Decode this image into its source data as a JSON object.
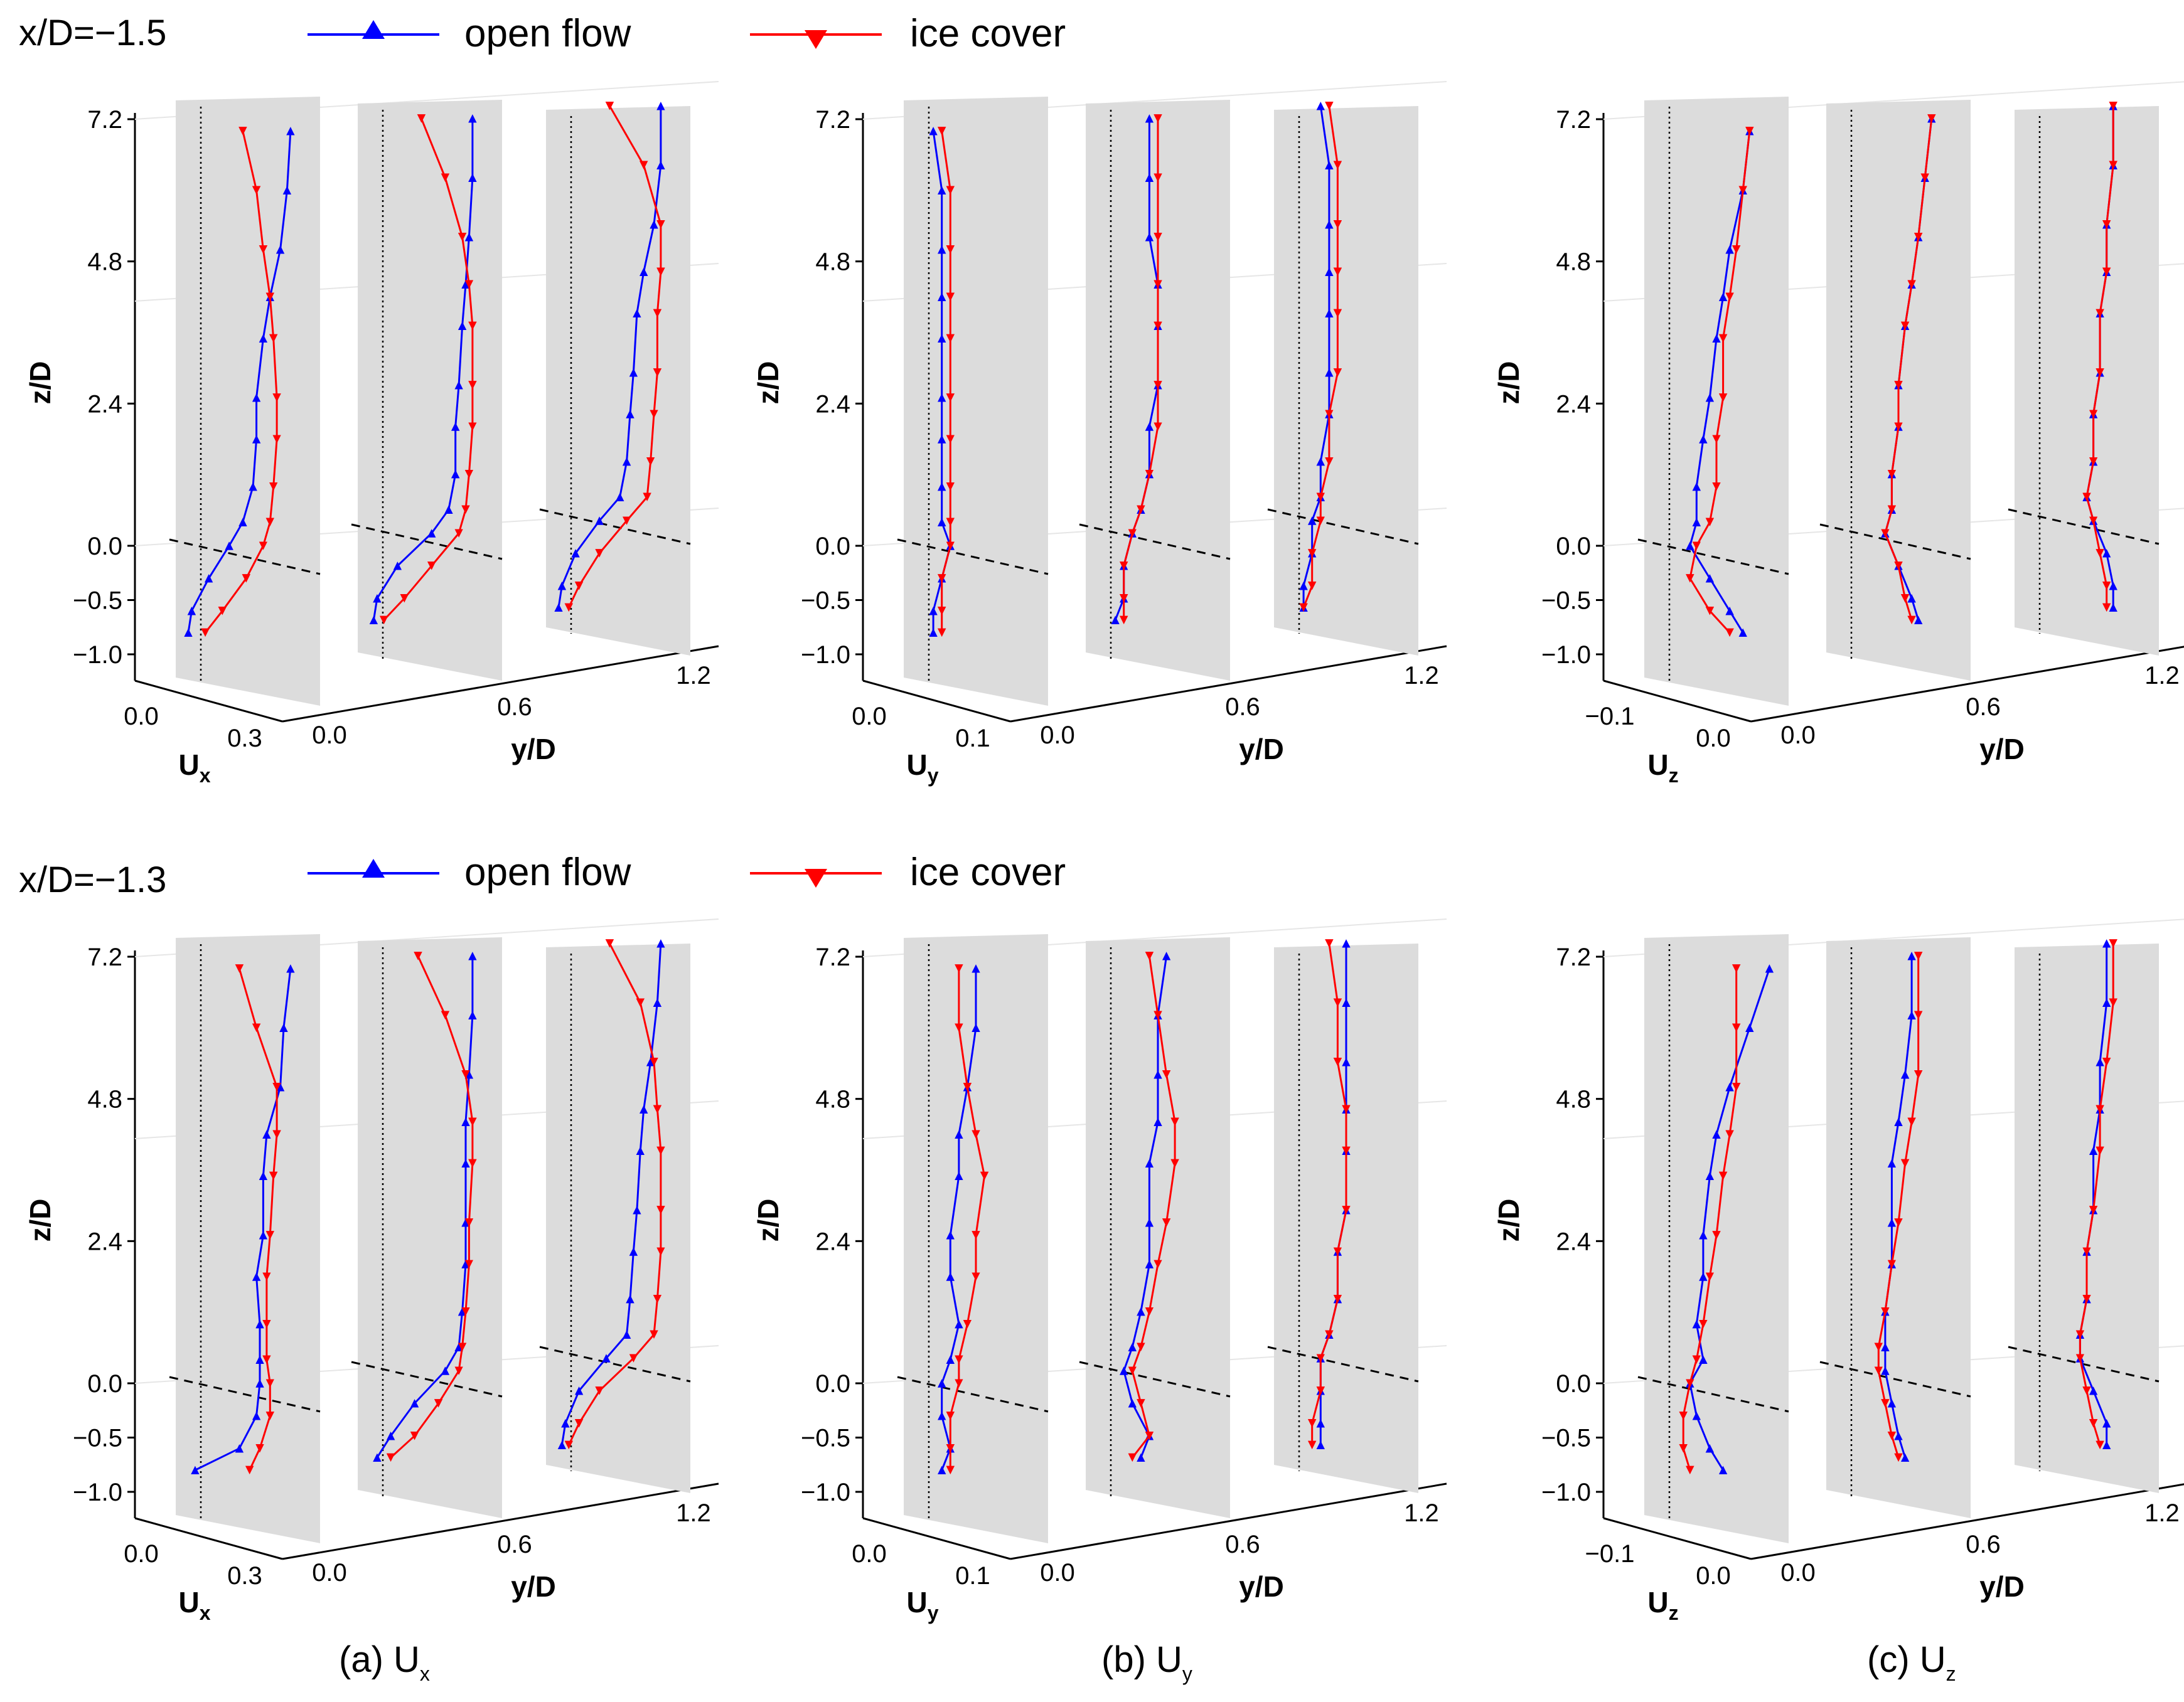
{
  "figure": {
    "rows": [
      {
        "title": "x/D=−1.5"
      },
      {
        "title": "x/D=−1.3"
      }
    ],
    "legend": [
      {
        "label": "open flow",
        "color": "#0000ff",
        "marker": "triangle-up"
      },
      {
        "label": "ice cover",
        "color": "#ff0000",
        "marker": "triangle-down"
      }
    ],
    "panels": [
      {
        "caption": "(a) U",
        "sub": "x",
        "axis_label": "U",
        "axis_sub": "x",
        "ticks": [
          "0.0",
          "0.3"
        ]
      },
      {
        "caption": "(b) U",
        "sub": "y",
        "axis_label": "U",
        "axis_sub": "y",
        "ticks": [
          "0.0",
          "0.1"
        ]
      },
      {
        "caption": "(c) U",
        "sub": "z",
        "axis_label": "U",
        "axis_sub": "z",
        "ticks": [
          "−0.1",
          "0.0"
        ]
      }
    ],
    "z_axis": {
      "label": "z/D",
      "ticks": [
        "7.2",
        "4.8",
        "2.4",
        "0.0",
        "−0.5",
        "−1.0"
      ]
    },
    "y_axis": {
      "label": "y/D",
      "ticks": [
        "0.0",
        "0.6",
        "1.2"
      ]
    }
  },
  "chart_data": {
    "type": "line",
    "description_keys": [
      "rows",
      "panels",
      "planes"
    ],
    "z_levels": [
      7.0,
      6.0,
      5.0,
      4.2,
      3.5,
      2.5,
      1.8,
      1.0,
      0.4,
      0.0,
      -0.3,
      -0.6,
      -0.8
    ],
    "series": [
      {
        "row": 0,
        "panel": "Ux",
        "plane": 0,
        "name": "open flow",
        "values": [
          0.3,
          0.29,
          0.27,
          0.24,
          0.22,
          0.2,
          0.2,
          0.19,
          0.16,
          0.12,
          0.06,
          0.01,
          0.0
        ]
      },
      {
        "row": 0,
        "panel": "Ux",
        "plane": 0,
        "name": "ice cover",
        "values": [
          0.16,
          0.2,
          0.22,
          0.24,
          0.25,
          0.26,
          0.26,
          0.25,
          0.24,
          0.22,
          0.17,
          0.1,
          0.05
        ]
      },
      {
        "row": 0,
        "panel": "Ux",
        "plane": 1,
        "name": "open flow",
        "values": [
          0.3,
          0.3,
          0.29,
          0.28,
          0.27,
          0.26,
          0.25,
          0.25,
          0.23,
          0.18,
          0.08,
          0.02,
          0.01
        ]
      },
      {
        "row": 0,
        "panel": "Ux",
        "plane": 1,
        "name": "ice cover",
        "values": [
          0.15,
          0.22,
          0.27,
          0.29,
          0.3,
          0.3,
          0.3,
          0.29,
          0.28,
          0.26,
          0.18,
          0.1,
          0.04
        ]
      },
      {
        "row": 0,
        "panel": "Ux",
        "plane": 2,
        "name": "open flow",
        "values": [
          0.3,
          0.3,
          0.28,
          0.25,
          0.23,
          0.22,
          0.21,
          0.2,
          0.18,
          0.12,
          0.05,
          0.01,
          0.0
        ]
      },
      {
        "row": 0,
        "panel": "Ux",
        "plane": 2,
        "name": "ice cover",
        "values": [
          0.15,
          0.25,
          0.3,
          0.3,
          0.29,
          0.29,
          0.28,
          0.27,
          0.26,
          0.2,
          0.12,
          0.06,
          0.03
        ]
      },
      {
        "row": 0,
        "panel": "Uy",
        "plane": 0,
        "name": "open flow",
        "values": [
          0.0,
          0.01,
          0.01,
          0.01,
          0.01,
          0.01,
          0.01,
          0.01,
          0.01,
          0.02,
          0.01,
          0.0,
          0.0
        ]
      },
      {
        "row": 0,
        "panel": "Uy",
        "plane": 0,
        "name": "ice cover",
        "values": [
          0.01,
          0.02,
          0.02,
          0.02,
          0.02,
          0.02,
          0.02,
          0.02,
          0.02,
          0.02,
          0.01,
          0.01,
          0.01
        ]
      },
      {
        "row": 0,
        "panel": "Uy",
        "plane": 1,
        "name": "open flow",
        "values": [
          0.04,
          0.04,
          0.04,
          0.05,
          0.05,
          0.05,
          0.04,
          0.04,
          0.03,
          0.02,
          0.01,
          0.01,
          0.0
        ]
      },
      {
        "row": 0,
        "panel": "Uy",
        "plane": 1,
        "name": "ice cover",
        "values": [
          0.05,
          0.05,
          0.05,
          0.05,
          0.05,
          0.05,
          0.05,
          0.04,
          0.03,
          0.02,
          0.01,
          0.01,
          0.01
        ]
      },
      {
        "row": 0,
        "panel": "Uy",
        "plane": 2,
        "name": "open flow",
        "values": [
          0.02,
          0.03,
          0.03,
          0.03,
          0.03,
          0.03,
          0.03,
          0.02,
          0.02,
          0.01,
          0.01,
          0.0,
          0.0
        ]
      },
      {
        "row": 0,
        "panel": "Uy",
        "plane": 2,
        "name": "ice cover",
        "values": [
          0.03,
          0.04,
          0.04,
          0.04,
          0.04,
          0.04,
          0.03,
          0.03,
          0.02,
          0.02,
          0.01,
          0.01,
          0.0
        ]
      },
      {
        "row": 0,
        "panel": "Uz",
        "plane": 0,
        "name": "open flow",
        "values": [
          0.02,
          0.01,
          -0.01,
          -0.02,
          -0.03,
          -0.04,
          -0.05,
          -0.06,
          -0.06,
          -0.07,
          -0.04,
          -0.01,
          0.01
        ]
      },
      {
        "row": 0,
        "panel": "Uz",
        "plane": 0,
        "name": "ice cover",
        "values": [
          0.02,
          0.01,
          0.0,
          -0.01,
          -0.02,
          -0.02,
          -0.03,
          -0.03,
          -0.04,
          -0.06,
          -0.07,
          -0.04,
          -0.01
        ]
      },
      {
        "row": 0,
        "panel": "Uz",
        "plane": 1,
        "name": "open flow",
        "values": [
          0.02,
          0.01,
          0.0,
          -0.01,
          -0.02,
          -0.03,
          -0.03,
          -0.04,
          -0.04,
          -0.05,
          -0.03,
          -0.01,
          0.0
        ]
      },
      {
        "row": 0,
        "panel": "Uz",
        "plane": 1,
        "name": "ice cover",
        "values": [
          0.02,
          0.01,
          0.0,
          -0.01,
          -0.02,
          -0.03,
          -0.03,
          -0.04,
          -0.04,
          -0.05,
          -0.03,
          -0.02,
          -0.01
        ]
      },
      {
        "row": 0,
        "panel": "Uz",
        "plane": 2,
        "name": "open flow",
        "values": [
          0.01,
          0.01,
          0.0,
          0.0,
          -0.01,
          -0.01,
          -0.02,
          -0.02,
          -0.03,
          -0.02,
          0.0,
          0.01,
          0.01
        ]
      },
      {
        "row": 0,
        "panel": "Uz",
        "plane": 2,
        "name": "ice cover",
        "values": [
          0.01,
          0.01,
          0.0,
          0.0,
          -0.01,
          -0.01,
          -0.02,
          -0.02,
          -0.03,
          -0.02,
          -0.01,
          0.0,
          0.0
        ]
      },
      {
        "row": 1,
        "panel": "Ux",
        "plane": 0,
        "name": "open flow",
        "values": [
          0.3,
          0.28,
          0.27,
          0.23,
          0.22,
          0.22,
          0.2,
          0.21,
          0.21,
          0.21,
          0.2,
          0.15,
          0.02
        ]
      },
      {
        "row": 1,
        "panel": "Ux",
        "plane": 0,
        "name": "ice cover",
        "values": [
          0.15,
          0.2,
          0.26,
          0.26,
          0.25,
          0.24,
          0.23,
          0.23,
          0.23,
          0.24,
          0.24,
          0.21,
          0.18
        ]
      },
      {
        "row": 1,
        "panel": "Ux",
        "plane": 1,
        "name": "open flow",
        "values": [
          0.3,
          0.3,
          0.29,
          0.28,
          0.28,
          0.28,
          0.28,
          0.27,
          0.26,
          0.22,
          0.13,
          0.06,
          0.02
        ]
      },
      {
        "row": 1,
        "panel": "Ux",
        "plane": 1,
        "name": "ice cover",
        "values": [
          0.14,
          0.22,
          0.28,
          0.3,
          0.3,
          0.29,
          0.29,
          0.28,
          0.27,
          0.26,
          0.2,
          0.13,
          0.06
        ]
      },
      {
        "row": 1,
        "panel": "Ux",
        "plane": 2,
        "name": "open flow",
        "values": [
          0.3,
          0.29,
          0.27,
          0.25,
          0.24,
          0.23,
          0.22,
          0.21,
          0.2,
          0.14,
          0.06,
          0.02,
          0.01
        ]
      },
      {
        "row": 1,
        "panel": "Ux",
        "plane": 2,
        "name": "ice cover",
        "values": [
          0.15,
          0.24,
          0.28,
          0.29,
          0.3,
          0.3,
          0.3,
          0.29,
          0.28,
          0.22,
          0.12,
          0.06,
          0.03
        ]
      },
      {
        "row": 1,
        "panel": "Uy",
        "plane": 0,
        "name": "open flow",
        "values": [
          0.05,
          0.05,
          0.04,
          0.03,
          0.03,
          0.02,
          0.02,
          0.03,
          0.02,
          0.01,
          0.01,
          0.02,
          0.01
        ]
      },
      {
        "row": 1,
        "panel": "Uy",
        "plane": 0,
        "name": "ice cover",
        "values": [
          0.03,
          0.03,
          0.04,
          0.05,
          0.06,
          0.05,
          0.05,
          0.04,
          0.03,
          0.03,
          0.02,
          0.02,
          0.02
        ]
      },
      {
        "row": 1,
        "panel": "Uy",
        "plane": 1,
        "name": "open flow",
        "values": [
          0.06,
          0.05,
          0.05,
          0.05,
          0.04,
          0.04,
          0.04,
          0.03,
          0.02,
          0.01,
          0.02,
          0.04,
          0.03
        ]
      },
      {
        "row": 1,
        "panel": "Uy",
        "plane": 1,
        "name": "ice cover",
        "values": [
          0.04,
          0.05,
          0.06,
          0.07,
          0.07,
          0.06,
          0.05,
          0.04,
          0.03,
          0.02,
          0.03,
          0.04,
          0.02
        ]
      },
      {
        "row": 1,
        "panel": "Uy",
        "plane": 2,
        "name": "open flow",
        "values": [
          0.05,
          0.05,
          0.05,
          0.05,
          0.05,
          0.05,
          0.04,
          0.04,
          0.03,
          0.02,
          0.02,
          0.02,
          0.02
        ]
      },
      {
        "row": 1,
        "panel": "Uy",
        "plane": 2,
        "name": "ice cover",
        "values": [
          0.03,
          0.04,
          0.04,
          0.05,
          0.05,
          0.05,
          0.04,
          0.04,
          0.03,
          0.02,
          0.02,
          0.01,
          0.01
        ]
      },
      {
        "row": 1,
        "panel": "Uz",
        "plane": 0,
        "name": "open flow",
        "values": [
          0.05,
          0.02,
          -0.01,
          -0.03,
          -0.04,
          -0.05,
          -0.05,
          -0.06,
          -0.05,
          -0.07,
          -0.06,
          -0.04,
          -0.02
        ]
      },
      {
        "row": 1,
        "panel": "Uz",
        "plane": 0,
        "name": "ice cover",
        "values": [
          0.0,
          0.0,
          0.0,
          -0.01,
          -0.02,
          -0.03,
          -0.04,
          -0.05,
          -0.06,
          -0.07,
          -0.08,
          -0.08,
          -0.07
        ]
      },
      {
        "row": 1,
        "panel": "Uz",
        "plane": 1,
        "name": "open flow",
        "values": [
          -0.01,
          -0.01,
          -0.02,
          -0.03,
          -0.04,
          -0.04,
          -0.04,
          -0.05,
          -0.05,
          -0.05,
          -0.04,
          -0.03,
          -0.02
        ]
      },
      {
        "row": 1,
        "panel": "Uz",
        "plane": 1,
        "name": "ice cover",
        "values": [
          0.0,
          0.0,
          0.0,
          -0.01,
          -0.02,
          -0.03,
          -0.04,
          -0.05,
          -0.06,
          -0.06,
          -0.05,
          -0.04,
          -0.03
        ]
      },
      {
        "row": 1,
        "panel": "Uz",
        "plane": 2,
        "name": "open flow",
        "values": [
          0.0,
          0.0,
          -0.01,
          -0.01,
          -0.02,
          -0.02,
          -0.03,
          -0.03,
          -0.04,
          -0.04,
          -0.02,
          0.0,
          0.0
        ]
      },
      {
        "row": 1,
        "panel": "Uz",
        "plane": 2,
        "name": "ice cover",
        "values": [
          0.01,
          0.01,
          0.0,
          -0.01,
          -0.01,
          -0.02,
          -0.03,
          -0.03,
          -0.04,
          -0.04,
          -0.03,
          -0.02,
          -0.01
        ]
      }
    ]
  }
}
